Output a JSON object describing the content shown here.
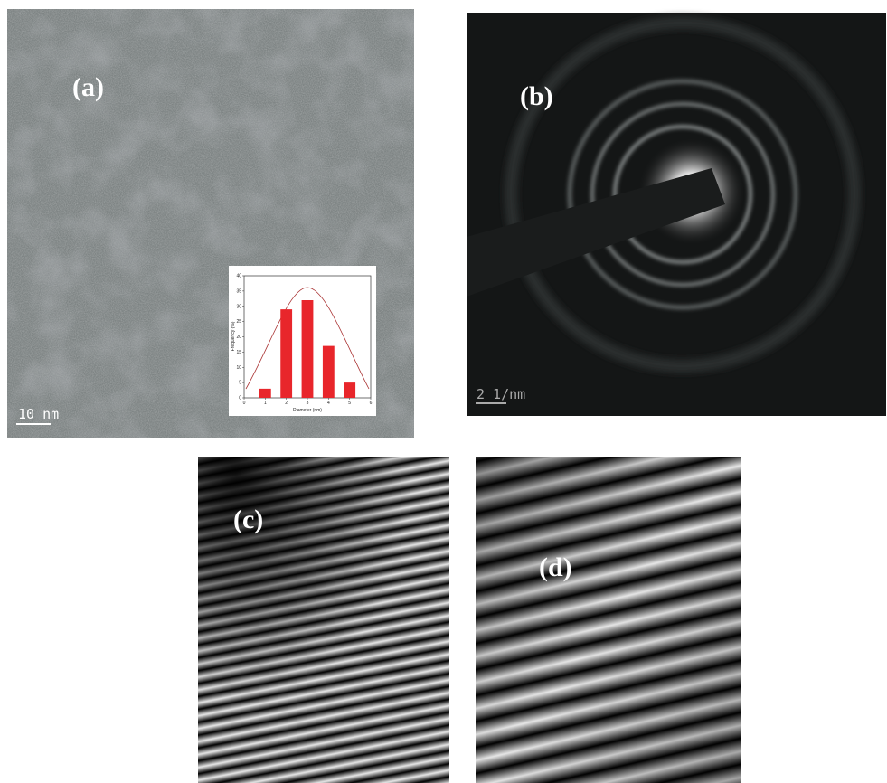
{
  "panels": [
    {
      "label": "(a)",
      "scale_bar": "10 nm",
      "inset": {
        "type": "bar",
        "x_label": "Diameter (nm)",
        "y_label": "Frequency (%)",
        "x": [
          1,
          2,
          3,
          4,
          5
        ],
        "values": [
          3,
          29,
          32,
          17,
          5
        ],
        "color": "#e8262b",
        "xlim": [
          0,
          6
        ],
        "xticks": [
          0,
          1,
          2,
          3,
          4,
          5,
          6
        ],
        "ylim": [
          0,
          40
        ],
        "yticks": [
          0,
          5,
          10,
          15,
          20,
          25,
          30,
          35,
          40
        ]
      }
    },
    {
      "label": "(b)",
      "scale_bar": "2 1/nm"
    },
    {
      "label": "(c)"
    },
    {
      "label": "(d)"
    }
  ]
}
